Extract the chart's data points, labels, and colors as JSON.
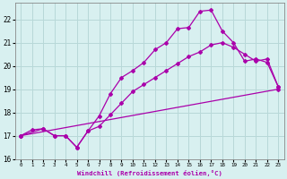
{
  "xlabel": "Windchill (Refroidissement éolien,°C)",
  "bg_color": "#d8f0f0",
  "grid_color": "#b8d8d8",
  "line_color": "#aa00aa",
  "xlim": [
    -0.5,
    23.5
  ],
  "ylim": [
    16,
    22.7
  ],
  "xticks": [
    0,
    1,
    2,
    3,
    4,
    5,
    6,
    7,
    8,
    9,
    10,
    11,
    12,
    13,
    14,
    15,
    16,
    17,
    18,
    19,
    20,
    21,
    22,
    23
  ],
  "yticks": [
    16,
    17,
    18,
    19,
    20,
    21,
    22
  ],
  "line1_x": [
    0,
    1,
    2,
    3,
    4,
    5,
    6,
    7,
    8,
    9,
    10,
    11,
    12,
    13,
    14,
    15,
    16,
    17,
    18,
    19,
    20,
    21,
    22,
    23
  ],
  "line1_y": [
    17.0,
    17.25,
    17.3,
    17.0,
    17.0,
    16.5,
    17.2,
    17.85,
    18.8,
    19.5,
    19.8,
    20.15,
    20.7,
    21.0,
    21.6,
    21.65,
    22.35,
    22.4,
    21.5,
    21.0,
    20.2,
    20.3,
    20.15,
    19.1
  ],
  "line2_x": [
    0,
    2,
    3,
    4,
    5,
    6,
    7,
    8,
    9,
    10,
    11,
    12,
    13,
    14,
    15,
    16,
    17,
    18,
    19,
    20,
    21,
    22,
    23
  ],
  "line2_y": [
    17.0,
    17.3,
    17.0,
    17.0,
    16.5,
    17.2,
    17.4,
    17.9,
    18.4,
    18.9,
    19.2,
    19.5,
    19.8,
    20.1,
    20.4,
    20.6,
    20.9,
    21.0,
    20.8,
    20.5,
    20.2,
    20.3,
    19.1
  ],
  "line3_x": [
    0,
    23
  ],
  "line3_y": [
    17.0,
    19.0
  ]
}
